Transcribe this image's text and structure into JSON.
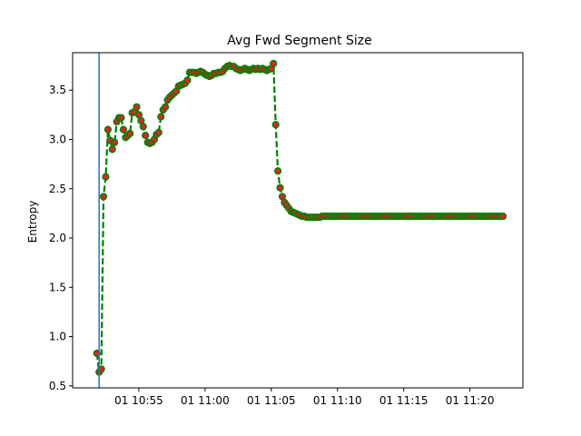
{
  "chart_data": {
    "type": "line",
    "title": "Avg Fwd Segment Size",
    "xlabel": "",
    "ylabel": "Entropy",
    "xlim": [
      "2024-01-01T10:50:00",
      "2024-01-01T11:24:00"
    ],
    "ylim": [
      0.48,
      3.88
    ],
    "x_ticks": [
      {
        "time": "2024-01-01T10:55:00",
        "label": "01 10:55"
      },
      {
        "time": "2024-01-01T11:00:00",
        "label": "01 11:00"
      },
      {
        "time": "2024-01-01T11:05:00",
        "label": "01 11:05"
      },
      {
        "time": "2024-01-01T11:10:00",
        "label": "01 11:10"
      },
      {
        "time": "2024-01-01T11:15:00",
        "label": "01 11:15"
      },
      {
        "time": "2024-01-01T11:20:00",
        "label": "01 11:20"
      }
    ],
    "y_ticks": [
      0.5,
      1.0,
      1.5,
      2.0,
      2.5,
      3.0,
      3.5
    ],
    "y_tick_labels": [
      "0.5",
      "1.0",
      "1.5",
      "2.0",
      "2.5",
      "3.0",
      "3.5"
    ],
    "vertical_line": {
      "time": "2024-01-01T10:52:00",
      "color": "#1f77b4"
    },
    "series": [
      {
        "line_color": "#008000",
        "line_style": "dashed",
        "marker_face": "#d62728",
        "marker_edge": "#008000",
        "x": [
          "2024-01-01T10:51:50",
          "2024-01-01T10:52:00",
          "2024-01-01T10:52:10",
          "2024-01-01T10:52:20",
          "2024-01-01T10:52:30",
          "2024-01-01T10:52:40",
          "2024-01-01T10:52:50",
          "2024-01-01T10:53:00",
          "2024-01-01T10:53:10",
          "2024-01-01T10:53:20",
          "2024-01-01T10:53:30",
          "2024-01-01T10:53:40",
          "2024-01-01T10:53:50",
          "2024-01-01T10:54:00",
          "2024-01-01T10:54:10",
          "2024-01-01T10:54:20",
          "2024-01-01T10:54:30",
          "2024-01-01T10:54:40",
          "2024-01-01T10:54:50",
          "2024-01-01T10:55:00",
          "2024-01-01T10:55:10",
          "2024-01-01T10:55:20",
          "2024-01-01T10:55:30",
          "2024-01-01T10:55:40",
          "2024-01-01T10:55:50",
          "2024-01-01T10:56:00",
          "2024-01-01T10:56:10",
          "2024-01-01T10:56:20",
          "2024-01-01T10:56:30",
          "2024-01-01T10:56:40",
          "2024-01-01T10:56:50",
          "2024-01-01T10:57:00",
          "2024-01-01T10:57:10",
          "2024-01-01T10:57:20",
          "2024-01-01T10:57:30",
          "2024-01-01T10:57:40",
          "2024-01-01T10:57:50",
          "2024-01-01T10:58:00",
          "2024-01-01T10:58:10",
          "2024-01-01T10:58:20",
          "2024-01-01T10:58:30",
          "2024-01-01T10:58:40",
          "2024-01-01T10:58:50",
          "2024-01-01T10:59:00",
          "2024-01-01T10:59:10",
          "2024-01-01T10:59:20",
          "2024-01-01T10:59:30",
          "2024-01-01T10:59:40",
          "2024-01-01T10:59:50",
          "2024-01-01T11:00:00",
          "2024-01-01T11:00:10",
          "2024-01-01T11:00:20",
          "2024-01-01T11:00:30",
          "2024-01-01T11:00:40",
          "2024-01-01T11:00:50",
          "2024-01-01T11:01:00",
          "2024-01-01T11:01:10",
          "2024-01-01T11:01:20",
          "2024-01-01T11:01:30",
          "2024-01-01T11:01:40",
          "2024-01-01T11:01:50",
          "2024-01-01T11:02:00",
          "2024-01-01T11:02:10",
          "2024-01-01T11:02:20",
          "2024-01-01T11:02:30",
          "2024-01-01T11:02:40",
          "2024-01-01T11:02:50",
          "2024-01-01T11:03:00",
          "2024-01-01T11:03:10",
          "2024-01-01T11:03:20",
          "2024-01-01T11:03:30",
          "2024-01-01T11:03:40",
          "2024-01-01T11:03:50",
          "2024-01-01T11:04:00",
          "2024-01-01T11:04:10",
          "2024-01-01T11:04:20",
          "2024-01-01T11:04:30",
          "2024-01-01T11:04:40",
          "2024-01-01T11:04:50",
          "2024-01-01T11:05:00",
          "2024-01-01T11:05:10",
          "2024-01-01T11:05:20",
          "2024-01-01T11:05:30",
          "2024-01-01T11:05:40",
          "2024-01-01T11:05:50",
          "2024-01-01T11:06:00",
          "2024-01-01T11:06:10",
          "2024-01-01T11:06:20",
          "2024-01-01T11:06:30",
          "2024-01-01T11:06:40",
          "2024-01-01T11:06:50",
          "2024-01-01T11:07:00",
          "2024-01-01T11:07:10",
          "2024-01-01T11:07:20",
          "2024-01-01T11:07:30",
          "2024-01-01T11:07:40",
          "2024-01-01T11:07:50",
          "2024-01-01T11:08:00",
          "2024-01-01T11:08:10",
          "2024-01-01T11:08:20",
          "2024-01-01T11:08:30",
          "2024-01-01T11:08:40",
          "2024-01-01T11:08:50",
          "2024-01-01T11:09:00",
          "2024-01-01T11:09:10",
          "2024-01-01T11:09:20",
          "2024-01-01T11:09:30",
          "2024-01-01T11:09:40",
          "2024-01-01T11:09:50",
          "2024-01-01T11:10:00",
          "2024-01-01T11:10:10",
          "2024-01-01T11:10:20",
          "2024-01-01T11:10:30",
          "2024-01-01T11:10:40",
          "2024-01-01T11:10:50",
          "2024-01-01T11:11:00",
          "2024-01-01T11:11:10",
          "2024-01-01T11:11:20",
          "2024-01-01T11:11:30",
          "2024-01-01T11:11:40",
          "2024-01-01T11:11:50",
          "2024-01-01T11:12:00",
          "2024-01-01T11:12:10",
          "2024-01-01T11:12:20",
          "2024-01-01T11:12:30",
          "2024-01-01T11:12:40",
          "2024-01-01T11:12:50",
          "2024-01-01T11:13:00",
          "2024-01-01T11:13:10",
          "2024-01-01T11:13:20",
          "2024-01-01T11:13:30",
          "2024-01-01T11:13:40",
          "2024-01-01T11:13:50",
          "2024-01-01T11:14:00",
          "2024-01-01T11:14:10",
          "2024-01-01T11:14:20",
          "2024-01-01T11:14:30",
          "2024-01-01T11:14:40",
          "2024-01-01T11:14:50",
          "2024-01-01T11:15:00",
          "2024-01-01T11:15:10",
          "2024-01-01T11:15:20",
          "2024-01-01T11:15:30",
          "2024-01-01T11:15:40",
          "2024-01-01T11:15:50",
          "2024-01-01T11:16:00",
          "2024-01-01T11:16:10",
          "2024-01-01T11:16:20",
          "2024-01-01T11:16:30",
          "2024-01-01T11:16:40",
          "2024-01-01T11:16:50",
          "2024-01-01T11:17:00",
          "2024-01-01T11:17:10",
          "2024-01-01T11:17:20",
          "2024-01-01T11:17:30",
          "2024-01-01T11:17:40",
          "2024-01-01T11:17:50",
          "2024-01-01T11:18:00",
          "2024-01-01T11:18:10",
          "2024-01-01T11:18:20",
          "2024-01-01T11:18:30",
          "2024-01-01T11:18:40",
          "2024-01-01T11:18:50",
          "2024-01-01T11:19:00",
          "2024-01-01T11:19:10",
          "2024-01-01T11:19:20",
          "2024-01-01T11:19:30",
          "2024-01-01T11:19:40",
          "2024-01-01T11:19:50",
          "2024-01-01T11:20:00",
          "2024-01-01T11:20:10",
          "2024-01-01T11:20:20",
          "2024-01-01T11:20:30",
          "2024-01-01T11:20:40",
          "2024-01-01T11:20:50",
          "2024-01-01T11:21:00",
          "2024-01-01T11:21:10",
          "2024-01-01T11:21:20",
          "2024-01-01T11:21:30",
          "2024-01-01T11:21:40",
          "2024-01-01T11:21:50",
          "2024-01-01T11:22:00",
          "2024-01-01T11:22:10",
          "2024-01-01T11:22:20",
          "2024-01-01T11:22:30"
        ],
        "y": [
          0.83,
          0.64,
          0.67,
          2.42,
          2.62,
          3.1,
          2.99,
          2.9,
          2.97,
          3.18,
          3.22,
          3.22,
          3.1,
          3.02,
          3.04,
          3.06,
          3.27,
          3.28,
          3.33,
          3.25,
          3.19,
          3.13,
          3.04,
          2.97,
          2.96,
          2.97,
          3.0,
          3.05,
          3.07,
          3.23,
          3.3,
          3.33,
          3.4,
          3.43,
          3.45,
          3.47,
          3.49,
          3.54,
          3.55,
          3.56,
          3.57,
          3.6,
          3.68,
          3.68,
          3.68,
          3.67,
          3.68,
          3.69,
          3.68,
          3.66,
          3.65,
          3.64,
          3.65,
          3.67,
          3.67,
          3.68,
          3.68,
          3.69,
          3.72,
          3.74,
          3.75,
          3.74,
          3.74,
          3.72,
          3.71,
          3.7,
          3.71,
          3.72,
          3.71,
          3.7,
          3.71,
          3.72,
          3.71,
          3.72,
          3.71,
          3.72,
          3.71,
          3.7,
          3.71,
          3.72,
          3.77,
          3.15,
          2.68,
          2.51,
          2.42,
          2.36,
          2.33,
          2.3,
          2.27,
          2.26,
          2.25,
          2.24,
          2.23,
          2.22,
          2.22,
          2.21,
          2.21,
          2.21,
          2.21,
          2.21,
          2.21,
          2.21,
          2.22,
          2.22,
          2.22,
          2.22,
          2.22,
          2.22,
          2.22,
          2.22,
          2.22,
          2.22,
          2.22,
          2.22,
          2.22,
          2.22,
          2.22,
          2.22,
          2.22,
          2.22,
          2.22,
          2.22,
          2.22,
          2.22,
          2.22,
          2.22,
          2.22,
          2.22,
          2.22,
          2.22,
          2.22,
          2.22,
          2.22,
          2.22,
          2.22,
          2.22,
          2.22,
          2.22,
          2.22,
          2.22,
          2.22,
          2.22,
          2.22,
          2.22,
          2.22,
          2.22,
          2.22,
          2.22,
          2.22,
          2.22,
          2.22,
          2.22,
          2.22,
          2.22,
          2.22,
          2.22,
          2.22,
          2.22,
          2.22,
          2.22,
          2.22,
          2.22,
          2.22,
          2.22,
          2.22,
          2.22,
          2.22,
          2.22,
          2.22,
          2.22,
          2.22,
          2.22,
          2.22,
          2.22,
          2.22,
          2.22,
          2.22,
          2.22,
          2.22,
          2.22,
          2.22,
          2.22,
          2.22,
          2.22,
          2.22
        ]
      }
    ],
    "grid": false,
    "legend": "none"
  }
}
